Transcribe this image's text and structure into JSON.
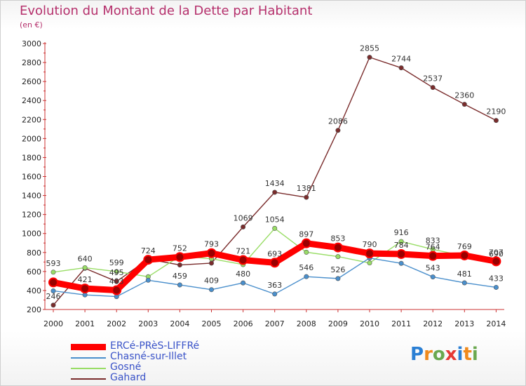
{
  "header": {
    "title": "Evolution du Montant de la Dette par Habitant",
    "subtitle": "(en €)"
  },
  "brand": {
    "name": "Proxiti",
    "colors": [
      "#2a7fd4",
      "#f08a1c",
      "#6aa84f",
      "#e53935",
      "#2a7fd4",
      "#f08a1c",
      "#6aa84f"
    ]
  },
  "chart_data": {
    "type": "line",
    "title": "Evolution du Montant de la Dette par Habitant",
    "subtitle": "(en €)",
    "xlabel": "",
    "ylabel": "",
    "ylim": [
      200,
      3000
    ],
    "yticks": [
      200,
      400,
      600,
      800,
      1000,
      1200,
      1400,
      1600,
      1800,
      2000,
      2200,
      2400,
      2600,
      2800,
      3000
    ],
    "grid": false,
    "legend_position": "bottom-left",
    "categories": [
      "2000",
      "2001",
      "2002",
      "2003",
      "2004",
      "2005",
      "2006",
      "2007",
      "2008",
      "2009",
      "2010",
      "2011",
      "2012",
      "2013",
      "2014"
    ],
    "series": [
      {
        "name": "ERCé-PRèS-LIFFRé",
        "color": "#ff0000",
        "values": [
          485,
          421,
          403,
          724,
          752,
          793,
          721,
          693,
          897,
          853,
          790,
          784,
          764,
          769,
          707
        ],
        "labels": [
          "",
          "421",
          "403",
          "724",
          "752",
          "793",
          "721",
          "693",
          "897",
          "853",
          "790",
          "784",
          "764",
          "769",
          "707"
        ]
      },
      {
        "name": "Chasné-sur-Illet",
        "color": "#4a8fcc",
        "values": [
          396,
          354,
          336,
          508,
          459,
          409,
          480,
          363,
          546,
          526,
          742,
          686,
          543,
          481,
          433
        ],
        "labels": [
          "",
          "",
          "",
          "",
          "459",
          "409",
          "480",
          "363",
          "546",
          "526",
          "",
          "",
          "543",
          "481",
          "433"
        ]
      },
      {
        "name": "Gosné",
        "color": "#99dd66",
        "values": [
          593,
          640,
          599,
          545,
          761,
          734,
          673,
          1054,
          803,
          757,
          690,
          916,
          833,
          762,
          690
        ],
        "labels": [
          "593",
          "640",
          "599",
          "",
          "",
          "",
          "",
          "1054",
          "",
          "",
          "",
          "916",
          "833",
          "",
          "690"
        ]
      },
      {
        "name": "Gahard",
        "color": "#7a2c2c",
        "values": [
          246,
          634,
          495,
          730,
          669,
          688,
          1069,
          1434,
          1381,
          2086,
          2855,
          2744,
          2537,
          2360,
          2190
        ],
        "labels": [
          "246",
          "",
          "495",
          "",
          "",
          "",
          "1069",
          "1434",
          "1381",
          "2086",
          "2855",
          "2744",
          "2537",
          "2360",
          "2190"
        ]
      }
    ]
  }
}
